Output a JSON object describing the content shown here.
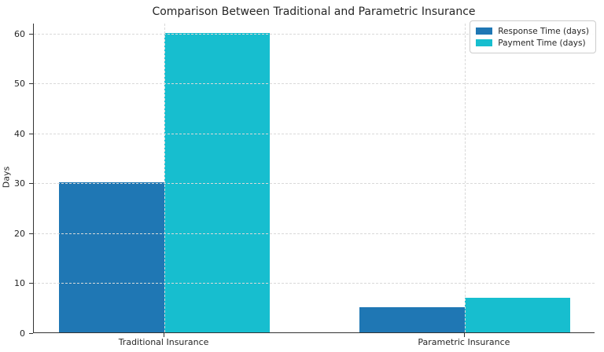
{
  "chart_data": {
    "type": "bar",
    "title": "Comparison Between Traditional and Parametric Insurance",
    "xlabel": "",
    "ylabel": "Days",
    "categories": [
      "Traditional Insurance",
      "Parametric Insurance"
    ],
    "series": [
      {
        "name": "Response Time (days)",
        "values": [
          30,
          5
        ],
        "color": "#1f77b4"
      },
      {
        "name": "Payment Time (days)",
        "values": [
          60,
          7
        ],
        "color": "#17becf"
      }
    ],
    "yticks": [
      0,
      10,
      20,
      30,
      40,
      50,
      60
    ],
    "ylim": [
      0,
      62
    ],
    "xlim": [
      -0.435,
      1.435
    ],
    "bar_width_units": 0.35,
    "grid": true,
    "grid_style": "dashed",
    "grid_axisbelow": false,
    "legend_position": "upper right",
    "colors": {
      "grid": "#d9d9d9",
      "spine": "#333333",
      "text": "#262626",
      "background": "#ffffff"
    }
  }
}
